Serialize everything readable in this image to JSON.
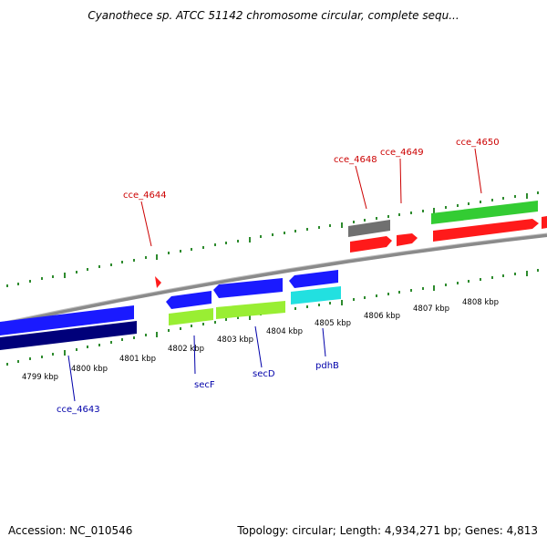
{
  "title": "Cyanothece sp. ATCC 51142 chromosome circular, complete sequ...",
  "footer": {
    "accession": "Accession: NC_010546",
    "topology": "Topology: circular; Length: 4,934,271 bp; Genes: 4,813"
  },
  "colors": {
    "backbone": "#8a8a8a",
    "tick": "#2e8b2e",
    "red_label": "#cc0000",
    "blue_label": "#0000aa",
    "gene_red": "#ff1a1a",
    "gene_green": "#33cc33",
    "gene_gray": "#707070",
    "gene_blue": "#1a1aff",
    "gene_navy": "#00007a",
    "gene_lime": "#99ee33",
    "gene_cyan": "#22e0e0"
  },
  "scale_labels": [
    "4799 kbp",
    "4800 kbp",
    "4801 kbp",
    "4802 kbp",
    "4803 kbp",
    "4804 kbp",
    "4805 kbp",
    "4806 kbp",
    "4807 kbp",
    "4808 kbp"
  ],
  "gene_labels_top": [
    "cce_4644",
    "cce_4648",
    "cce_4649",
    "cce_4650"
  ],
  "gene_labels_bottom": [
    "cce_4643",
    "secF",
    "secD",
    "pdhB"
  ]
}
